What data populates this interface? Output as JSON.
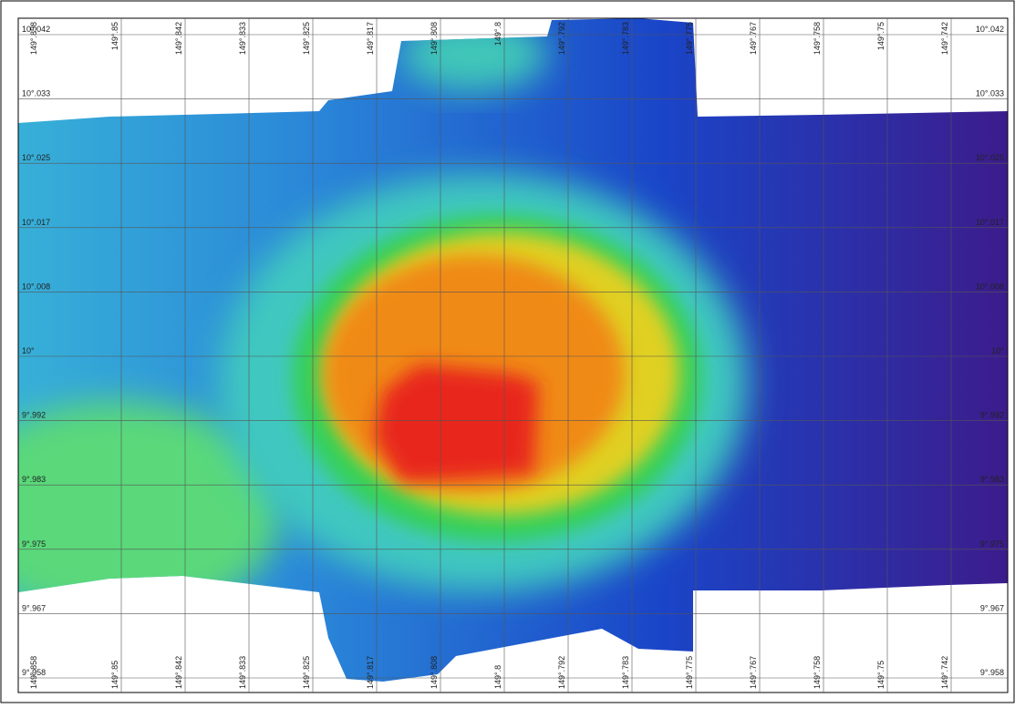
{
  "map": {
    "longitude_labels": [
      "149°.858",
      "149°.85",
      "149°.842",
      "149°.833",
      "149°.825",
      "149°.817",
      "149°.808",
      "149°.8",
      "149°.792",
      "149°.783",
      "149°.775",
      "149°.767",
      "149°.758",
      "149°.75",
      "149°.742"
    ],
    "latitude_labels": [
      "10°.042",
      "10°.033",
      "10°.025",
      "10°.017",
      "10°.008",
      "10°",
      "9°.992",
      "9°.983",
      "9°.975",
      "9°.967",
      "9°.958"
    ]
  }
}
